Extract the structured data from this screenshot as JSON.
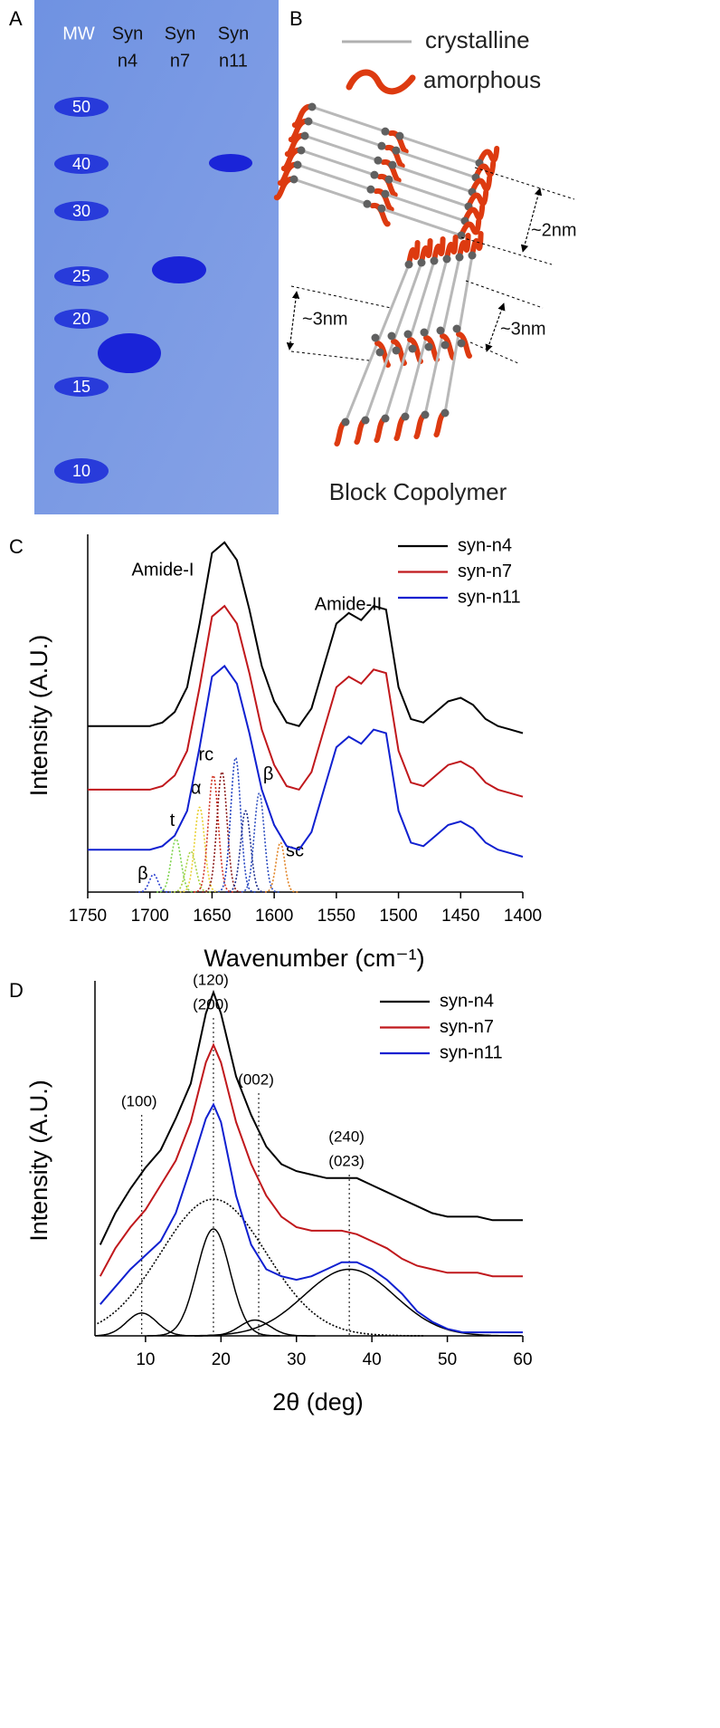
{
  "panel_a": {
    "label": "A",
    "lanes": [
      [
        "MW"
      ],
      [
        "Syn",
        "n4"
      ],
      [
        "Syn",
        "n7"
      ],
      [
        "Syn",
        "n11"
      ]
    ],
    "mw_markers": [
      50,
      40,
      30,
      25,
      20,
      15,
      10
    ]
  },
  "panel_b": {
    "label": "B",
    "legend": [
      "crystalline",
      "amorphous"
    ],
    "spacings": [
      "~2nm",
      "~3nm",
      "~3nm"
    ],
    "caption": "Block Copolymer"
  },
  "chart_data": [
    {
      "type": "line",
      "panel": "C",
      "xlabel": "Wavenumber (cm⁻¹)",
      "ylabel": "Intensity (A.U.)",
      "annotations": [
        "Amide-I",
        "Amide-II"
      ],
      "x": [
        1750,
        1740,
        1730,
        1720,
        1710,
        1700,
        1690,
        1680,
        1670,
        1660,
        1650,
        1640,
        1630,
        1620,
        1610,
        1600,
        1590,
        1580,
        1570,
        1560,
        1550,
        1540,
        1530,
        1520,
        1510,
        1500,
        1490,
        1480,
        1470,
        1460,
        1450,
        1440,
        1430,
        1420,
        1410,
        1400
      ],
      "xlim": [
        1750,
        1400
      ],
      "xticks": [
        1750,
        1700,
        1650,
        1600,
        1550,
        1500,
        1450,
        1400
      ],
      "ylim": [
        0,
        10
      ],
      "legend": "upper right",
      "series": [
        {
          "name": "syn-n4",
          "color": "#000000",
          "values": [
            4.7,
            4.7,
            4.7,
            4.7,
            4.7,
            4.7,
            4.8,
            5.1,
            5.8,
            7.6,
            9.6,
            9.9,
            9.4,
            8.0,
            6.4,
            5.4,
            4.8,
            4.7,
            5.2,
            6.4,
            7.6,
            7.9,
            7.7,
            8.1,
            8.0,
            5.8,
            4.9,
            4.8,
            5.1,
            5.4,
            5.5,
            5.3,
            4.9,
            4.7,
            4.6,
            4.5
          ]
        },
        {
          "name": "syn-n7",
          "color": "#c0181c",
          "values": [
            2.9,
            2.9,
            2.9,
            2.9,
            2.9,
            2.9,
            3.0,
            3.3,
            4.0,
            5.8,
            7.8,
            8.1,
            7.6,
            6.2,
            4.6,
            3.6,
            3.0,
            2.9,
            3.4,
            4.6,
            5.8,
            6.1,
            5.9,
            6.3,
            6.2,
            4.0,
            3.1,
            3.0,
            3.3,
            3.6,
            3.7,
            3.5,
            3.1,
            2.9,
            2.8,
            2.7
          ]
        },
        {
          "name": "syn-n11",
          "color": "#1020d0",
          "values": [
            1.2,
            1.2,
            1.2,
            1.2,
            1.2,
            1.2,
            1.3,
            1.6,
            2.3,
            4.1,
            6.1,
            6.4,
            5.9,
            4.5,
            2.9,
            1.9,
            1.3,
            1.2,
            1.7,
            2.9,
            4.1,
            4.4,
            4.2,
            4.6,
            4.5,
            2.3,
            1.4,
            1.3,
            1.6,
            1.9,
            2.0,
            1.8,
            1.4,
            1.2,
            1.1,
            1.0
          ]
        }
      ],
      "components": [
        {
          "center": 1697,
          "height": 0.5,
          "width": 3.5,
          "color": "#2a3fd0",
          "style": "dotted",
          "label": "β"
        },
        {
          "center": 1679,
          "height": 1.5,
          "width": 4,
          "color": "#7fd34f",
          "style": "dotted",
          "label": "t"
        },
        {
          "center": 1667,
          "height": 1.15,
          "width": 4,
          "color": "#a8d040",
          "style": "dotted",
          "label": null
        },
        {
          "center": 1660,
          "height": 2.4,
          "width": 4,
          "color": "#e8d030",
          "style": "dotted",
          "label": "α"
        },
        {
          "center": 1649,
          "height": 3.3,
          "width": 4,
          "color": "#d03020",
          "style": "dotted",
          "label": "rc"
        },
        {
          "center": 1642,
          "height": 3.4,
          "width": 4,
          "color": "#8b1a1a",
          "style": "dotted",
          "label": null
        },
        {
          "center": 1631,
          "height": 3.8,
          "width": 4,
          "color": "#2040c0",
          "style": "dotted",
          "label": null
        },
        {
          "center": 1623,
          "height": 2.3,
          "width": 4,
          "color": "#1a2a8a",
          "style": "dotted",
          "label": null
        },
        {
          "center": 1612,
          "height": 2.8,
          "width": 4,
          "color": "#3050c0",
          "style": "dotted",
          "label": "β"
        },
        {
          "center": 1595,
          "height": 1.4,
          "width": 3.5,
          "color": "#e08020",
          "style": "dotted",
          "label": "sc"
        }
      ]
    },
    {
      "type": "line",
      "panel": "D",
      "xlabel": "2θ (deg)",
      "ylabel": "Intensity (A.U.)",
      "x": [
        4,
        6,
        8,
        10,
        12,
        14,
        16,
        18,
        19,
        20,
        22,
        24,
        26,
        28,
        30,
        32,
        34,
        36,
        38,
        40,
        42,
        44,
        46,
        48,
        50,
        52,
        54,
        56,
        58,
        60
      ],
      "xlim": [
        3.3,
        60
      ],
      "xticks": [
        10,
        20,
        30,
        40,
        50,
        60
      ],
      "ylim": [
        0,
        10
      ],
      "legend": "upper right",
      "series": [
        {
          "name": "syn-n4",
          "color": "#000000",
          "values": [
            2.6,
            3.5,
            4.2,
            4.8,
            5.3,
            6.2,
            7.2,
            9.2,
            9.8,
            9.2,
            7.4,
            6.3,
            5.4,
            4.9,
            4.7,
            4.6,
            4.5,
            4.5,
            4.5,
            4.3,
            4.1,
            3.9,
            3.7,
            3.5,
            3.4,
            3.4,
            3.4,
            3.3,
            3.3,
            3.3
          ]
        },
        {
          "name": "syn-n7",
          "color": "#c0181c",
          "values": [
            1.7,
            2.5,
            3.1,
            3.6,
            4.3,
            5.0,
            6.1,
            7.8,
            8.3,
            7.8,
            6.1,
            4.9,
            4.0,
            3.4,
            3.1,
            3.0,
            3.0,
            3.0,
            2.9,
            2.7,
            2.5,
            2.2,
            2.0,
            1.9,
            1.8,
            1.8,
            1.8,
            1.7,
            1.7,
            1.7
          ]
        },
        {
          "name": "syn-n11",
          "color": "#1020d0",
          "values": [
            0.9,
            1.4,
            1.9,
            2.3,
            2.7,
            3.5,
            4.8,
            6.2,
            6.6,
            6.1,
            4.0,
            2.6,
            1.9,
            1.7,
            1.6,
            1.7,
            1.9,
            2.1,
            2.1,
            1.9,
            1.6,
            1.2,
            0.7,
            0.4,
            0.2,
            0.1,
            0.1,
            0.1,
            0.1,
            0.1
          ]
        }
      ],
      "components": [
        {
          "center": 9.5,
          "height": 0.65,
          "width": 2.0,
          "color": "#000000",
          "style": "solid",
          "label": null
        },
        {
          "center": 19,
          "height": 3.05,
          "width": 2.2,
          "color": "#000000",
          "style": "solid",
          "label": null
        },
        {
          "center": 24.5,
          "height": 0.45,
          "width": 2.0,
          "color": "#000000",
          "style": "solid",
          "label": null
        },
        {
          "center": 37,
          "height": 1.9,
          "width": 6,
          "color": "#000000",
          "style": "solid",
          "label": null
        },
        {
          "center": 19,
          "height": 3.9,
          "width": 7,
          "color": "#000000",
          "style": "dotted",
          "label": null
        }
      ],
      "reflections": [
        {
          "x": 9.5,
          "labels": [
            "(100)"
          ]
        },
        {
          "x": 19,
          "labels": [
            "(120)",
            "(200)"
          ]
        },
        {
          "x": 25,
          "labels": [
            "(002)"
          ]
        },
        {
          "x": 37,
          "labels": [
            "(240)",
            "(023)"
          ]
        }
      ]
    }
  ]
}
